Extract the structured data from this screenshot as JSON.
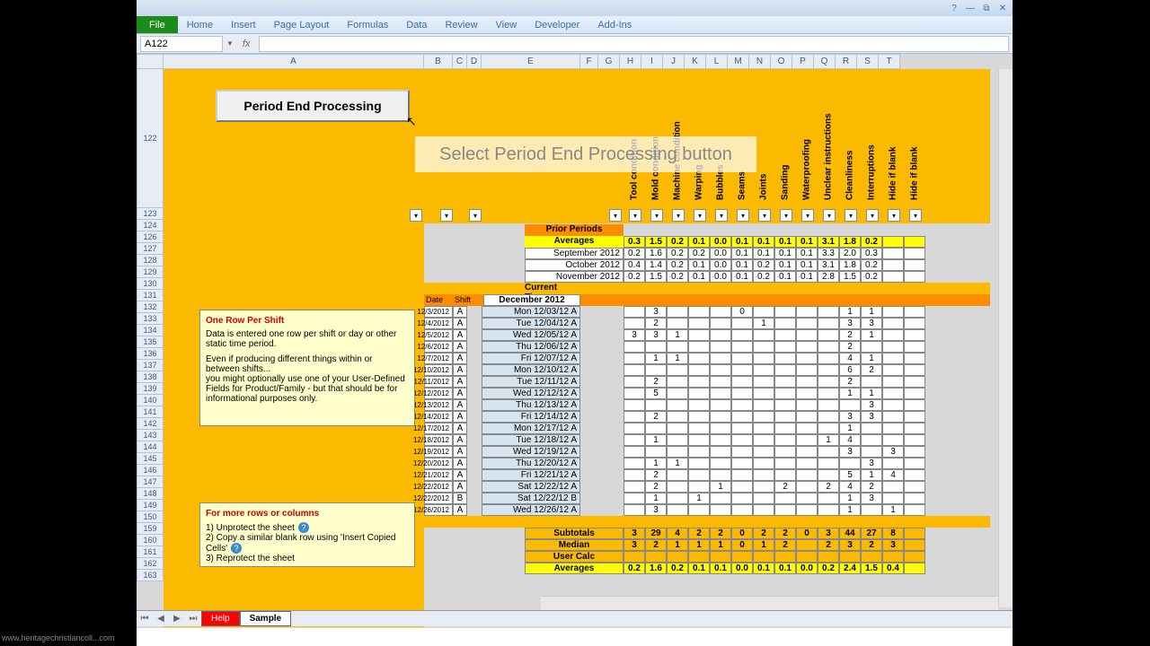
{
  "ribbon": {
    "file": "File",
    "tabs": [
      "Home",
      "Insert",
      "Page Layout",
      "Formulas",
      "Data",
      "Review",
      "View",
      "Developer",
      "Add-Ins"
    ]
  },
  "name_box": "A122",
  "fx_label": "fx",
  "columns": {
    "letters": [
      "A",
      "B",
      "C",
      "D",
      "E",
      "F",
      "G",
      "H",
      "I",
      "J",
      "K",
      "L",
      "M",
      "N",
      "O",
      "P",
      "Q",
      "R",
      "S",
      "T"
    ],
    "widths": [
      290,
      32,
      16,
      16,
      110,
      20,
      24,
      24,
      24,
      24,
      24,
      24,
      24,
      24,
      24,
      24,
      24,
      24,
      24,
      24
    ]
  },
  "row_numbers": [
    122,
    123,
    124,
    126,
    127,
    128,
    129,
    130,
    131,
    132,
    133,
    134,
    135,
    136,
    137,
    138,
    139,
    140,
    141,
    142,
    143,
    144,
    145,
    146,
    147,
    148,
    149,
    150,
    159,
    160,
    161,
    162,
    163
  ],
  "button_label": "Period End Processing",
  "tooltip": "Select Period End Processing button",
  "rotated_headers": [
    "Tool condition",
    "Mold condition",
    "Machine condition",
    "Warping",
    "Bubbles",
    "Seams",
    "Joints",
    "Sanding",
    "Waterproofing",
    "Unclear instructions",
    "Cleanliness",
    "Interruptions",
    "Hide if blank",
    "Hide if blank"
  ],
  "sections": {
    "prior": "Prior Periods",
    "averages": "Averages",
    "current": "Current Time Period",
    "date": "Date",
    "shift": "Shift",
    "month": "December 2012",
    "subtotals": "Subtotals",
    "median": "Median",
    "usercalc": "User Calc",
    "averages2": "Averages"
  },
  "averages_row": [
    "0.3",
    "1.5",
    "0.2",
    "0.1",
    "0.0",
    "0.1",
    "0.1",
    "0.1",
    "0.1",
    "3.1",
    "1.8",
    "0.2",
    "",
    ""
  ],
  "prior_months": [
    {
      "label": "September 2012",
      "vals": [
        "0.2",
        "1.6",
        "0.2",
        "0.2",
        "0.0",
        "0.1",
        "0.1",
        "0.1",
        "0.1",
        "3.3",
        "2.0",
        "0.3",
        "",
        ""
      ]
    },
    {
      "label": "October 2012",
      "vals": [
        "0.4",
        "1.4",
        "0.2",
        "0.1",
        "0.0",
        "0.1",
        "0.2",
        "0.1",
        "0.1",
        "3.1",
        "1.8",
        "0.2",
        "",
        ""
      ]
    },
    {
      "label": "November 2012",
      "vals": [
        "0.2",
        "1.5",
        "0.2",
        "0.1",
        "0.0",
        "0.1",
        "0.2",
        "0.1",
        "0.1",
        "2.8",
        "1.5",
        "0.2",
        "",
        ""
      ]
    }
  ],
  "daily": [
    {
      "date": "12/3/2012",
      "sh": "A",
      "day": "Mon 12/03/12 A",
      "v": [
        "",
        "3",
        "",
        "",
        "",
        "0",
        "",
        "",
        "",
        "",
        "1",
        "1",
        "",
        ""
      ]
    },
    {
      "date": "12/4/2012",
      "sh": "A",
      "day": "Tue 12/04/12 A",
      "v": [
        "",
        "2",
        "",
        "",
        "",
        "",
        "1",
        "",
        "",
        "",
        "3",
        "3",
        "",
        ""
      ]
    },
    {
      "date": "12/5/2012",
      "sh": "A",
      "day": "Wed 12/05/12 A",
      "v": [
        "3",
        "3",
        "1",
        "",
        "",
        "",
        "",
        "",
        "",
        "",
        "2",
        "1",
        "",
        ""
      ]
    },
    {
      "date": "12/6/2012",
      "sh": "A",
      "day": "Thu 12/06/12 A",
      "v": [
        "",
        "",
        "",
        "",
        "",
        "",
        "",
        "",
        "",
        "",
        "2",
        "",
        "",
        ""
      ]
    },
    {
      "date": "12/7/2012",
      "sh": "A",
      "day": "Fri 12/07/12 A",
      "v": [
        "",
        "1",
        "1",
        "",
        "",
        "",
        "",
        "",
        "",
        "",
        "4",
        "1",
        "",
        ""
      ]
    },
    {
      "date": "12/10/2012",
      "sh": "A",
      "day": "Mon 12/10/12 A",
      "v": [
        "",
        "",
        "",
        "",
        "",
        "",
        "",
        "",
        "",
        "",
        "6",
        "2",
        "",
        ""
      ]
    },
    {
      "date": "12/11/2012",
      "sh": "A",
      "day": "Tue 12/11/12 A",
      "v": [
        "",
        "2",
        "",
        "",
        "",
        "",
        "",
        "",
        "",
        "",
        "2",
        "",
        "",
        ""
      ]
    },
    {
      "date": "12/12/2012",
      "sh": "A",
      "day": "Wed 12/12/12 A",
      "v": [
        "",
        "5",
        "",
        "",
        "",
        "",
        "",
        "",
        "",
        "",
        "1",
        "1",
        "",
        ""
      ]
    },
    {
      "date": "12/13/2012",
      "sh": "A",
      "day": "Thu 12/13/12 A",
      "v": [
        "",
        "",
        "",
        "",
        "",
        "",
        "",
        "",
        "",
        "",
        "",
        "3",
        "",
        ""
      ]
    },
    {
      "date": "12/14/2012",
      "sh": "A",
      "day": "Fri 12/14/12 A",
      "v": [
        "",
        "2",
        "",
        "",
        "",
        "",
        "",
        "",
        "",
        "",
        "3",
        "3",
        "",
        ""
      ]
    },
    {
      "date": "12/17/2012",
      "sh": "A",
      "day": "Mon 12/17/12 A",
      "v": [
        "",
        "",
        "",
        "",
        "",
        "",
        "",
        "",
        "",
        "",
        "1",
        "",
        "",
        ""
      ]
    },
    {
      "date": "12/18/2012",
      "sh": "A",
      "day": "Tue 12/18/12 A",
      "v": [
        "",
        "1",
        "",
        "",
        "",
        "",
        "",
        "",
        "",
        "1",
        "4",
        "",
        "",
        ""
      ]
    },
    {
      "date": "12/19/2012",
      "sh": "A",
      "day": "Wed 12/19/12 A",
      "v": [
        "",
        "",
        "",
        "",
        "",
        "",
        "",
        "",
        "",
        "",
        "3",
        "",
        "3",
        ""
      ]
    },
    {
      "date": "12/20/2012",
      "sh": "A",
      "day": "Thu 12/20/12 A",
      "v": [
        "",
        "1",
        "1",
        "",
        "",
        "",
        "",
        "",
        "",
        "",
        "",
        "3",
        "",
        ""
      ]
    },
    {
      "date": "12/21/2012",
      "sh": "A",
      "day": "Fri 12/21/12 A",
      "v": [
        "",
        "2",
        "",
        "",
        "",
        "",
        "",
        "",
        "",
        "",
        "5",
        "1",
        "4",
        ""
      ]
    },
    {
      "date": "12/22/2012",
      "sh": "A",
      "day": "Sat 12/22/12 A",
      "v": [
        "",
        "2",
        "",
        "",
        "1",
        "",
        "",
        "2",
        "",
        "2",
        "4",
        "2",
        "",
        ""
      ]
    },
    {
      "date": "12/22/2012",
      "sh": "B",
      "day": "Sat 12/22/12 B",
      "v": [
        "",
        "1",
        "",
        "1",
        "",
        "",
        "",
        "",
        "",
        "",
        "1",
        "3",
        "",
        ""
      ]
    },
    {
      "date": "12/26/2012",
      "sh": "A",
      "day": "Wed 12/26/12 A",
      "v": [
        "",
        "3",
        "",
        "",
        "",
        "",
        "",
        "",
        "",
        "",
        "1",
        "",
        "1",
        ""
      ]
    }
  ],
  "subtotals_row": [
    "3",
    "29",
    "4",
    "2",
    "2",
    "0",
    "2",
    "2",
    "0",
    "3",
    "44",
    "27",
    "8",
    ""
  ],
  "median_row": [
    "3",
    "2",
    "1",
    "1",
    "1",
    "0",
    "1",
    "2",
    "",
    "2",
    "3",
    "2",
    "3",
    ""
  ],
  "averages2_row": [
    "0.2",
    "1.6",
    "0.2",
    "0.1",
    "0.1",
    "0.0",
    "0.1",
    "0.1",
    "0.0",
    "0.2",
    "2.4",
    "1.5",
    "0.4",
    ""
  ],
  "note1": {
    "title": "One Row Per Shift",
    "l1": "Data is entered one row per shift or day or other static time period.",
    "l2": "Even if producing different things within or between shifts...",
    "l3": "you might optionally use one of your User-Defined Fields for Product/Family - but that should be for informational purposes only."
  },
  "note2": {
    "title": "For more rows or columns",
    "l1": "1) Unprotect the sheet",
    "l2": "2) Copy a similar blank row using 'Insert Copied Cells'",
    "l3": "3) Reprotect the sheet"
  },
  "sheet_tabs": {
    "help": "Help",
    "sample": "Sample"
  },
  "watermark": "www.heritagechristiancoll...com",
  "colors": {
    "gold": "#fbb900",
    "orange": "#ff8c00",
    "yellow": "#ffff00",
    "lightblue": "#d6e4f0",
    "notebox": "#ffffcc"
  }
}
